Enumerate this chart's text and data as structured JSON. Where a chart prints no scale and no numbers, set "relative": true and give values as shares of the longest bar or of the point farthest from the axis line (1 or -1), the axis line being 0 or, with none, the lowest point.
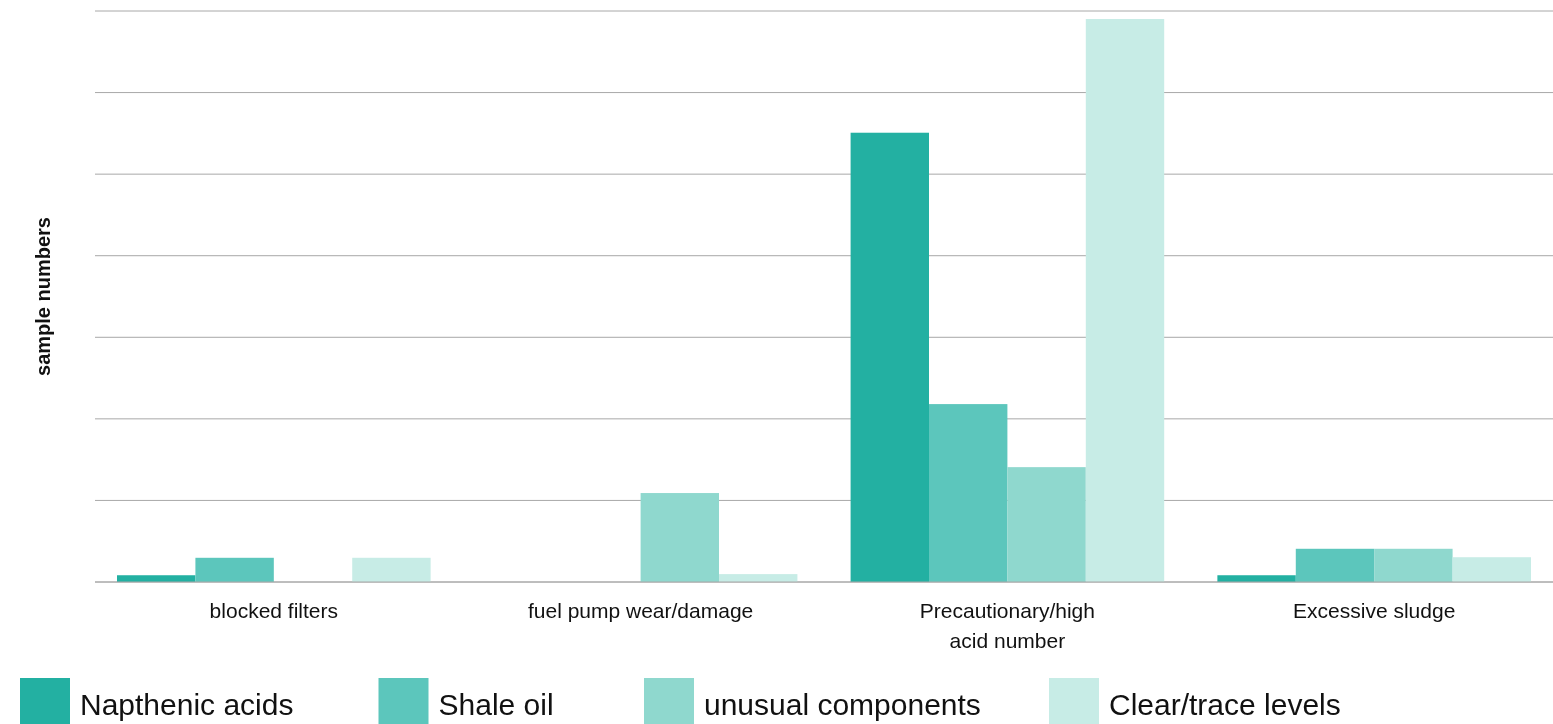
{
  "chart_data": {
    "type": "bar",
    "ylabel": "sample numbers",
    "relative": true,
    "grid": "y",
    "legend": "bottom",
    "categories": [
      "blocked filters",
      "fuel pump wear/damage",
      "Precautionary/high acid number",
      "Excessive sludge"
    ],
    "series": [
      {
        "name": "Napthenic acids",
        "color": "#23b0a2",
        "values": [
          0.012,
          0,
          0.798,
          0.012
        ]
      },
      {
        "name": "Shale oil",
        "color": "#5cc6bc",
        "values": [
          0.043,
          0,
          0.316,
          0.059
        ]
      },
      {
        "name": "unusual components",
        "color": "#8fd8ce",
        "values": [
          0,
          0.158,
          0.204,
          0.059
        ]
      },
      {
        "name": "Clear/trace levels",
        "color": "#c7ece6",
        "values": [
          0.043,
          0.014,
          1,
          0.044
        ]
      }
    ]
  }
}
